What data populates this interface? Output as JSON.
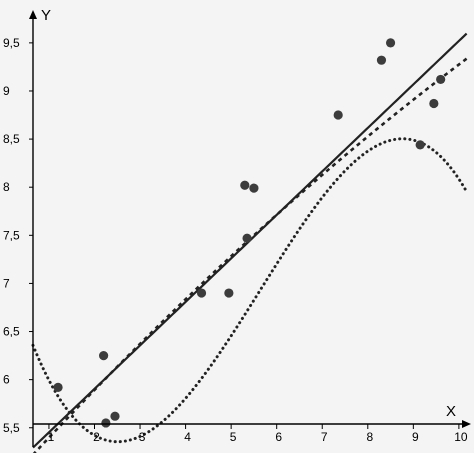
{
  "chart_data": {
    "type": "scatter",
    "title": "",
    "xlabel": "X",
    "ylabel": "Y",
    "xlim": [
      0.65,
      10.2
    ],
    "ylim": [
      5.3,
      9.8
    ],
    "x_ticks": [
      "1",
      "2",
      "3",
      "4",
      "5",
      "6",
      "7",
      "8",
      "9",
      "10"
    ],
    "y_ticks": [
      "5,5",
      "6",
      "6,5",
      "7",
      "7,5",
      "8",
      "8,5",
      "9",
      "9,5"
    ],
    "grid": false,
    "points": [
      {
        "x": 1.2,
        "y": 5.92
      },
      {
        "x": 2.2,
        "y": 6.25
      },
      {
        "x": 2.25,
        "y": 5.55
      },
      {
        "x": 2.45,
        "y": 5.62
      },
      {
        "x": 4.35,
        "y": 6.9
      },
      {
        "x": 4.95,
        "y": 6.9
      },
      {
        "x": 5.3,
        "y": 8.02
      },
      {
        "x": 5.35,
        "y": 7.47
      },
      {
        "x": 5.5,
        "y": 7.99
      },
      {
        "x": 7.35,
        "y": 8.75
      },
      {
        "x": 8.3,
        "y": 9.32
      },
      {
        "x": 8.5,
        "y": 9.5
      },
      {
        "x": 9.15,
        "y": 8.44
      },
      {
        "x": 9.45,
        "y": 8.87
      },
      {
        "x": 9.6,
        "y": 9.12
      }
    ],
    "fits": [
      {
        "style": "solid",
        "kind": "linear",
        "coeffs": [
          5.0,
          0.452
        ]
      },
      {
        "style": "dashed",
        "kind": "quadratic",
        "coeffs": [
          4.885,
          0.52,
          -0.0081
        ]
      },
      {
        "style": "dotted",
        "kind": "cubic",
        "coeffs": [
          7.285,
          -1.7,
          0.4356,
          -0.02576
        ]
      }
    ],
    "colors": {
      "points": "#3c3c3c",
      "lines": "#222222",
      "axes": "#000000",
      "background": "#f4f4f4"
    }
  }
}
